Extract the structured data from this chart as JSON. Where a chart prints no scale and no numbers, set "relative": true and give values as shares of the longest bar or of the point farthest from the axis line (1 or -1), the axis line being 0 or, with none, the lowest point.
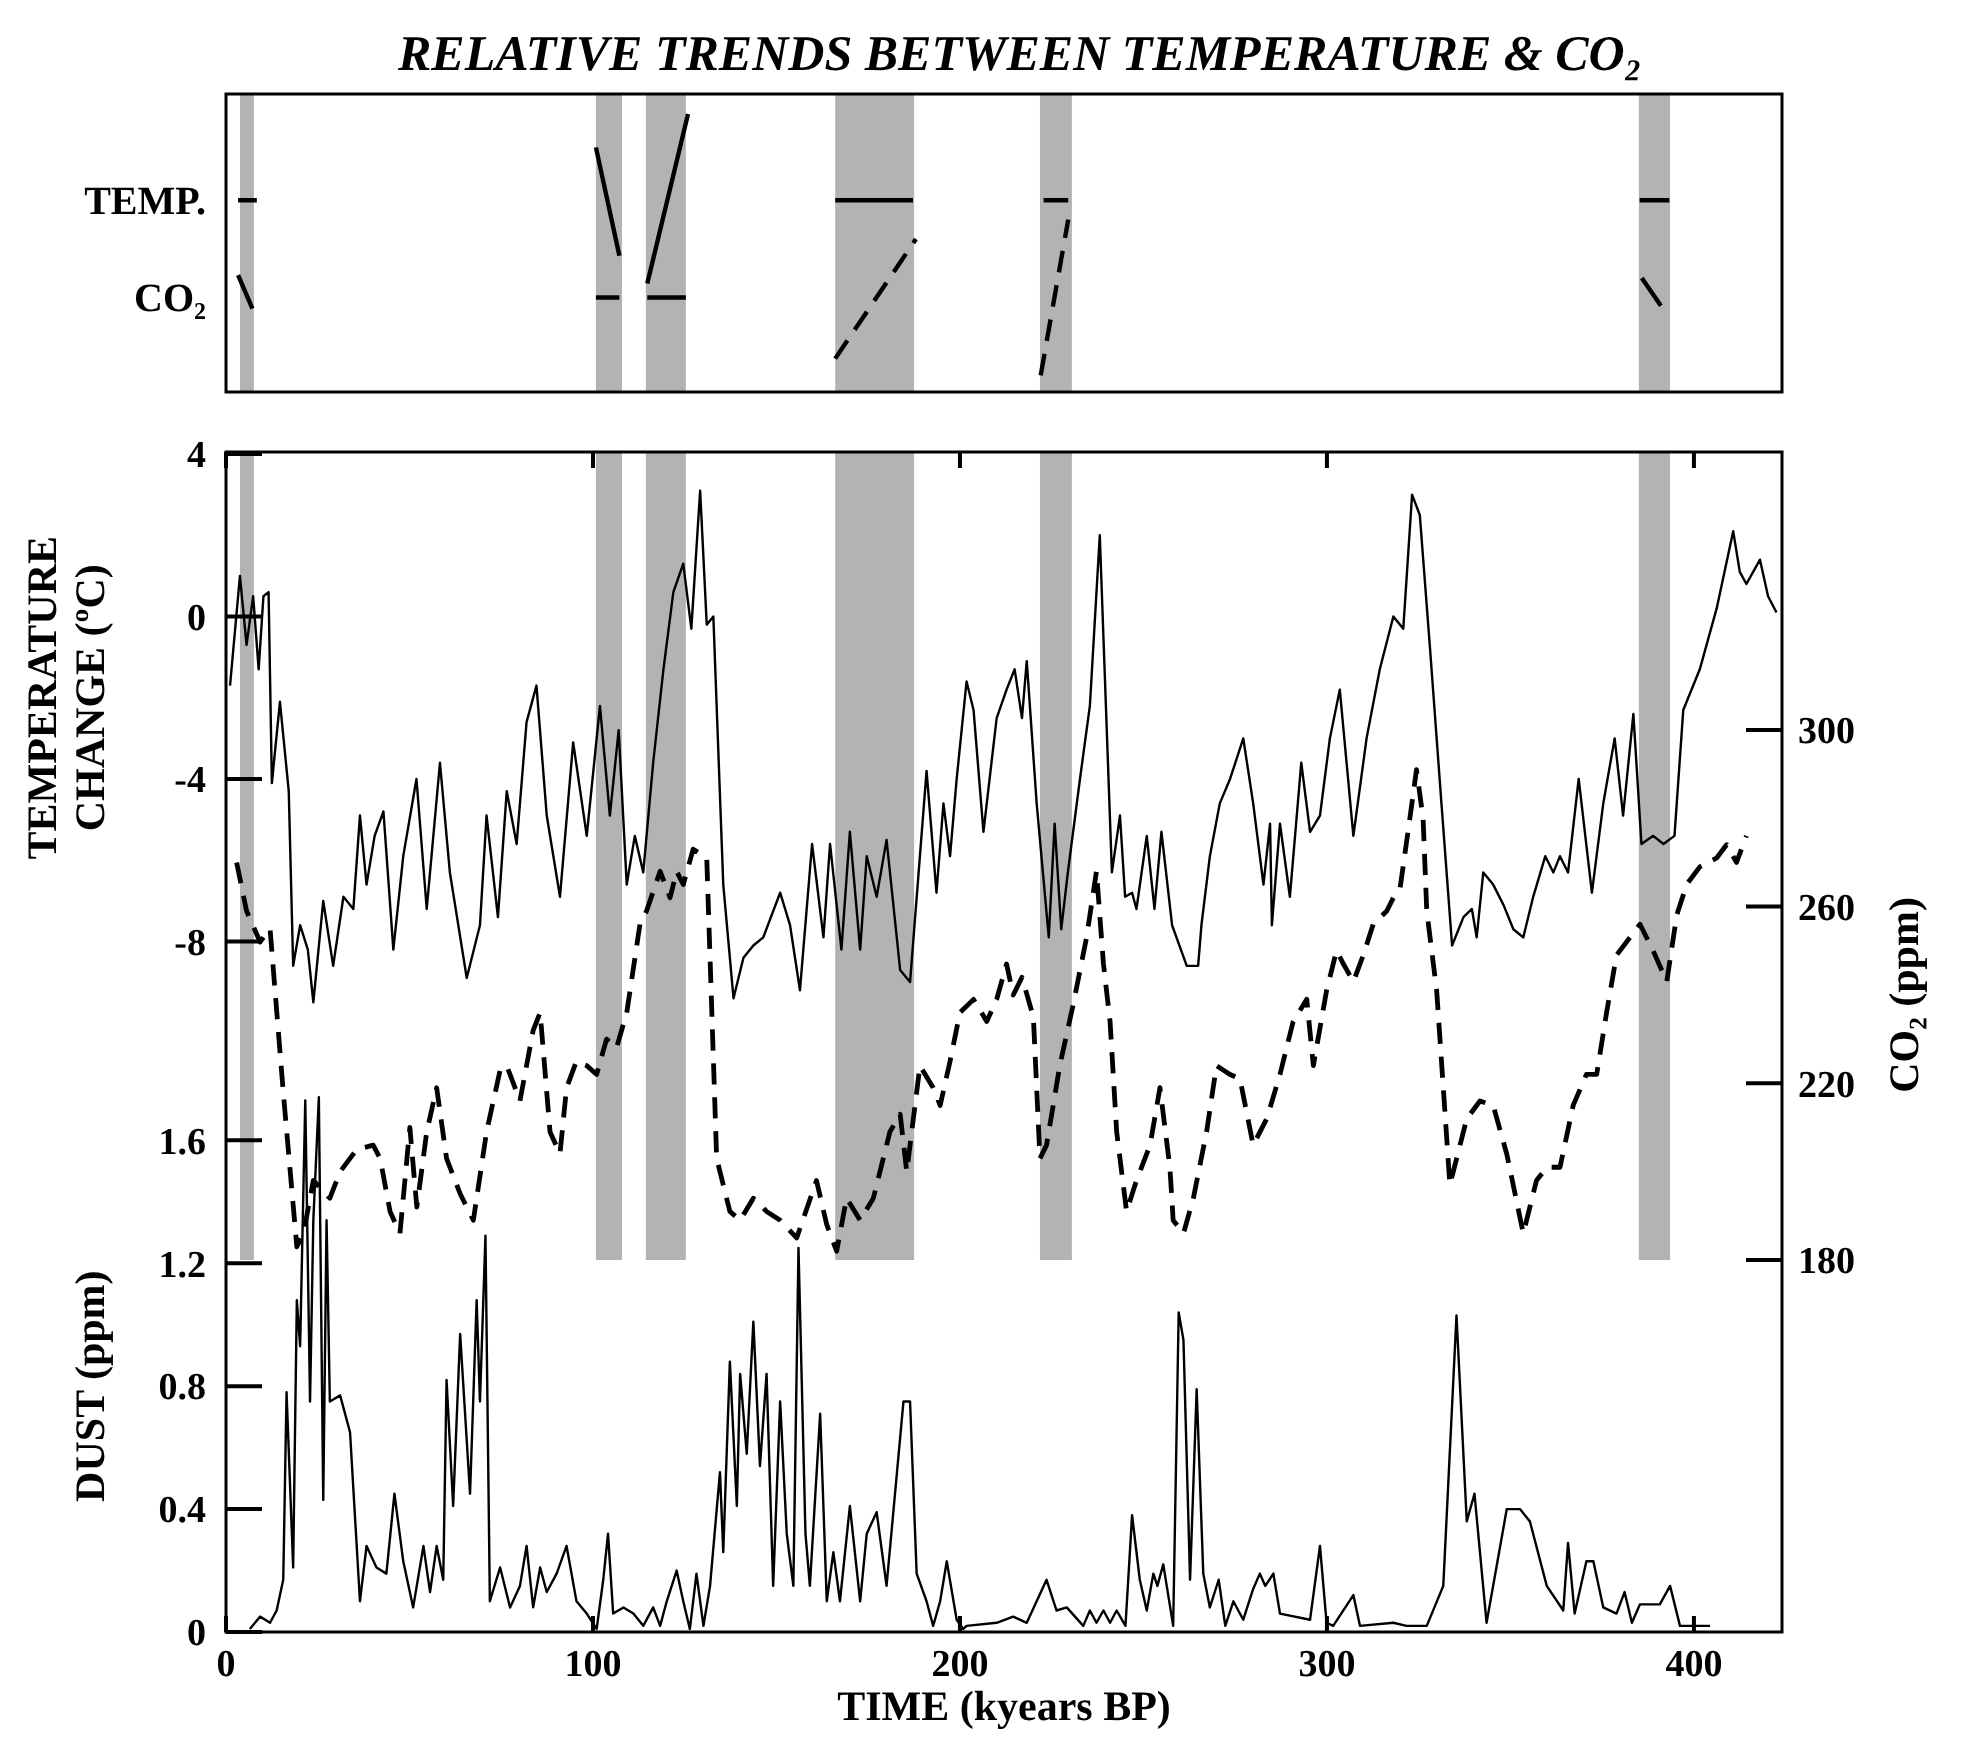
{
  "chart_data": [
    {
      "type": "line",
      "title": "RELATIVE TRENDS BETWEEN TEMPERATURE & CO₂",
      "xlim": [
        0,
        424
      ],
      "relative": true,
      "bands": [
        {
          "axis": "x",
          "from": 3.8,
          "to": 7.6,
          "color": "#b3b3b3"
        },
        {
          "axis": "x",
          "from": 100.8,
          "to": 107.9,
          "color": "#b3b3b3"
        },
        {
          "axis": "x",
          "from": 114.4,
          "to": 125.3,
          "color": "#b3b3b3"
        },
        {
          "axis": "x",
          "from": 166,
          "to": 187.5,
          "color": "#b3b3b3"
        },
        {
          "axis": "x",
          "from": 221.8,
          "to": 230.5,
          "color": "#b3b3b3"
        },
        {
          "axis": "x",
          "from": 385,
          "to": 393.5,
          "color": "#b3b3b3"
        }
      ],
      "series": [
        {
          "name": "TEMP.",
          "color": "#000000",
          "line_style": "solid",
          "x": [
            3.3,
            8.4,
            50,
            100.8,
            107.2,
            110,
            114.8,
            125.9,
            140,
            166,
            187.2,
            200,
            222.8,
            229.5,
            300,
            385.2,
            393.3
          ],
          "values": [
            0.69,
            0.69,
            null,
            0.88,
            0.49,
            null,
            0.39,
            1,
            null,
            0.69,
            0.69,
            null,
            0.69,
            0.69,
            null,
            0.69,
            0.69
          ]
        },
        {
          "name": "CO₂",
          "color": "#000000",
          "line_style": "solid",
          "x": [
            3.3,
            7.2,
            50,
            100.8,
            107.2,
            110,
            114.8,
            125.3,
            300,
            385.8,
            391
          ],
          "values": [
            0.42,
            0.3,
            null,
            0.34,
            0.34,
            null,
            0.34,
            0.34,
            null,
            0.41,
            0.31
          ]
        },
        {
          "color": "#000000",
          "line_style": "dashed",
          "x": [
            166,
            188,
            200,
            222,
            229.5
          ],
          "values": [
            0.12,
            0.55,
            null,
            0.06,
            0.62
          ]
        }
      ]
    },
    {
      "type": "line",
      "xlabel": "TIME (kyears BP)",
      "ylabel": "TEMPERATURE CHANGE (ºC)",
      "y2label": "CO₂ (ppm)",
      "y3label": "DUST (ppm)",
      "xlim": [
        0,
        424
      ],
      "xticks": [
        0,
        100,
        200,
        300,
        400
      ],
      "ylim": [
        -25,
        4.05
      ],
      "yticks": [
        4,
        0,
        -4,
        -8
      ],
      "y2lim": [
        95.8,
        362.9
      ],
      "y2ticks": [
        180,
        220,
        260,
        300
      ],
      "y3lim": [
        0,
        3.84
      ],
      "y3ticks": [
        0,
        0.4,
        0.8,
        1.2,
        1.6
      ],
      "bands": [
        {
          "axis": "x",
          "from": 3.8,
          "to": 7.6,
          "color": "#b3b3b3"
        },
        {
          "axis": "x",
          "from": 100.8,
          "to": 107.9,
          "color": "#b3b3b3"
        },
        {
          "axis": "x",
          "from": 114.4,
          "to": 125.3,
          "color": "#b3b3b3"
        },
        {
          "axis": "x",
          "from": 166,
          "to": 187.5,
          "color": "#b3b3b3"
        },
        {
          "axis": "x",
          "from": 221.8,
          "to": 230.5,
          "color": "#b3b3b3"
        },
        {
          "axis": "x",
          "from": 385,
          "to": 393.5,
          "color": "#b3b3b3"
        }
      ],
      "series": [
        {
          "color": "#000000",
          "line_style": "solid",
          "axis": "y",
          "x": [
            1.1,
            3.8,
            5.6,
            7.4,
            8.9,
            10.2,
            11.6,
            12.5,
            14.7,
            17.1,
            18.3,
            20.2,
            22.3,
            23.8,
            26.5,
            29.2,
            32.0,
            34.7,
            36.5,
            38.3,
            40.5,
            42.9,
            45.6,
            48.3,
            51.9,
            54.7,
            58.3,
            61.0,
            65.6,
            69.2,
            71.0,
            74.1,
            76.5,
            79.2,
            81.9,
            84.6,
            87.4,
            91.0,
            94.6,
            98.3,
            101.9,
            104.6,
            107.0,
            109.2,
            111.4,
            113.7,
            116.4,
            119.2,
            121.9,
            124.6,
            126.8,
            129.2,
            131.0,
            132.8,
            135.5,
            138.3,
            141.0,
            143.7,
            146.4,
            151.0,
            153.7,
            156.4,
            159.7,
            162.8,
            164.6,
            167.7,
            170.0,
            172.8,
            174.6,
            177.3,
            180.0,
            183.7,
            186.4,
            190.9,
            193.6,
            195.5,
            197.3,
            199.1,
            201.8,
            203.7,
            206.4,
            210.0,
            212.7,
            214.9,
            216.9,
            218.2,
            220.9,
            224.2,
            225.8,
            227.6,
            229.4,
            232.7,
            235.4,
            238.1,
            241.4,
            243.6,
            245.0,
            246.9,
            248.1,
            250.9,
            253.0,
            254.9,
            257.8,
            261.8,
            264.9,
            265.8,
            268.1,
            270.8,
            273.6,
            277.2,
            279.9,
            282.7,
            284.5,
            285.0,
            287.2,
            289.9,
            293.0,
            295.4,
            298.1,
            300.8,
            303.5,
            307.2,
            310.8,
            314.4,
            318.1,
            320.8,
            323.2,
            325.3,
            328.1,
            331.2,
            334.1,
            337.2,
            339.5,
            340.8,
            342.6,
            345.3,
            348.1,
            350.8,
            353.5,
            356.2,
            359.5,
            361.7,
            363.5,
            365.7,
            368.6,
            372.2,
            375.3,
            378.4,
            380.7,
            383.5,
            385.7,
            388.9,
            391.7,
            394.7,
            397.1,
            401.6,
            406.2,
            410.7,
            412.5,
            414.3,
            418.0,
            420.2,
            422.5
          ],
          "values": [
            -1.7,
            1.0,
            -0.7,
            0.5,
            -1.3,
            0.5,
            0.6,
            -4.1,
            -2.1,
            -4.3,
            -8.6,
            -7.6,
            -8.2,
            -9.5,
            -7.0,
            -8.6,
            -6.9,
            -7.2,
            -4.9,
            -6.6,
            -5.4,
            -4.8,
            -8.2,
            -5.9,
            -4.0,
            -7.2,
            -3.6,
            -6.3,
            -8.9,
            -7.6,
            -4.9,
            -7.4,
            -4.3,
            -5.6,
            -2.6,
            -1.7,
            -4.9,
            -6.9,
            -3.1,
            -5.4,
            -2.2,
            -4.9,
            -2.8,
            -6.6,
            -5.4,
            -6.3,
            -3.6,
            -1.3,
            0.6,
            1.3,
            -0.3,
            3.1,
            -0.2,
            0.0,
            -6.6,
            -9.4,
            -8.4,
            -8.1,
            -7.9,
            -6.8,
            -7.6,
            -9.2,
            -5.6,
            -7.9,
            -5.6,
            -8.2,
            -5.3,
            -8.2,
            -5.9,
            -6.9,
            -5.5,
            -8.7,
            -9.0,
            -3.8,
            -6.8,
            -4.6,
            -5.9,
            -4.0,
            -1.6,
            -2.3,
            -5.3,
            -2.5,
            -1.8,
            -1.3,
            -2.5,
            -1.1,
            -4.6,
            -7.9,
            -5.1,
            -7.7,
            -6.3,
            -4.0,
            -2.2,
            2.0,
            -6.3,
            -4.9,
            -6.9,
            -6.8,
            -7.2,
            -5.4,
            -7.2,
            -5.3,
            -7.6,
            -8.6,
            -8.6,
            -7.6,
            -5.9,
            -4.6,
            -4.0,
            -3.0,
            -4.6,
            -6.6,
            -5.1,
            -7.6,
            -5.1,
            -6.9,
            -3.6,
            -5.3,
            -4.9,
            -3.0,
            -1.8,
            -5.4,
            -3.0,
            -1.3,
            0.0,
            -0.3,
            3.0,
            2.5,
            -0.8,
            -4.6,
            -8.1,
            -7.4,
            -7.2,
            -7.9,
            -6.3,
            -6.6,
            -7.1,
            -7.7,
            -7.9,
            -6.9,
            -5.9,
            -6.3,
            -5.9,
            -6.3,
            -4.0,
            -6.8,
            -4.6,
            -3.0,
            -4.9,
            -2.4,
            -5.6,
            -5.4,
            -5.6,
            -5.4,
            -2.3,
            -1.3,
            0.2,
            2.1,
            1.1,
            0.8,
            1.4,
            0.5,
            0.1
          ]
        },
        {
          "color": "#000000",
          "line_style": "dashed",
          "axis": "y2",
          "x": [
            2.9,
            5.6,
            9.3,
            12.0,
            15.6,
            19.3,
            21.1,
            23.8,
            28.3,
            31.1,
            35.6,
            40.1,
            42.0,
            44.7,
            47.4,
            50.1,
            52.0,
            54.7,
            57.4,
            60.1,
            63.8,
            67.4,
            71.0,
            74.7,
            76.5,
            80.1,
            83.7,
            85.6,
            88.3,
            91.0,
            92.8,
            95.5,
            98.3,
            101.0,
            103.7,
            106.4,
            109.2,
            112.8,
            114.6,
            118.3,
            121.0,
            122.8,
            124.6,
            127.3,
            131.0,
            133.7,
            137.3,
            140.1,
            143.7,
            147.3,
            151.0,
            155.5,
            160.9,
            163.7,
            166.4,
            169.1,
            172.8,
            176.4,
            180.9,
            183.7,
            185.5,
            189.1,
            192.7,
            194.6,
            197.3,
            200.0,
            203.7,
            207.3,
            210.0,
            212.7,
            214.5,
            216.9,
            220.0,
            221.8,
            223.6,
            227.2,
            230.9,
            234.5,
            237.2,
            239.1,
            240.9,
            242.7,
            245.4,
            248.1,
            251.8,
            254.5,
            257.2,
            258.1,
            260.9,
            263.6,
            267.2,
            269.9,
            273.6,
            276.3,
            279.9,
            283.6,
            287.2,
            290.8,
            294.5,
            296.3,
            299.9,
            302.6,
            304.5,
            307.2,
            309.9,
            312.6,
            316.3,
            318.1,
            319.9,
            322.6,
            324.4,
            326.2,
            327.2,
            329.9,
            333.5,
            338.1,
            341.7,
            345.3,
            349.0,
            353.5,
            357.1,
            359.9,
            363.5,
            367.1,
            370.7,
            373.5,
            376.2,
            378.9,
            385.3,
            388.9,
            392.6,
            395.3,
            398.0,
            401.6,
            406.2,
            408.9,
            411.6,
            414.3
          ],
          "values": [
            270,
            259,
            252,
            255,
            218,
            183,
            186,
            198,
            194,
            200,
            205,
            206,
            203,
            191,
            186,
            210,
            192,
            209,
            219,
            203,
            195,
            189,
            209,
            223,
            224,
            216,
            232,
            236,
            209,
            204,
            219,
            225,
            224,
            222,
            230,
            228,
            236,
            256,
            259,
            268,
            262,
            268,
            265,
            273,
            271,
            203,
            191,
            189,
            194,
            191,
            189,
            185,
            198,
            188,
            182,
            194,
            189,
            194,
            209,
            213,
            200,
            224,
            219,
            215,
            225,
            236,
            239,
            234,
            239,
            247,
            240,
            244,
            235,
            203,
            206,
            224,
            238,
            253,
            268,
            247,
            234,
            209,
            191,
            198,
            206,
            219,
            201,
            189,
            186,
            194,
            209,
            224,
            222,
            221,
            206,
            212,
            222,
            234,
            239,
            224,
            241,
            250,
            247,
            243,
            249,
            256,
            259,
            262,
            264,
            280,
            291,
            280,
            259,
            241,
            197,
            212,
            216,
            215,
            204,
            186,
            198,
            201,
            201,
            215,
            222,
            222,
            236,
            249,
            256,
            250,
            243,
            258,
            265,
            269,
            271,
            274,
            270,
            276
          ]
        },
        {
          "color": "#000000",
          "line_style": "solid",
          "axis": "y3",
          "x": [
            6.5,
            9.3,
            12.0,
            13.8,
            15.6,
            16.5,
            18.3,
            19.3,
            20.2,
            21.6,
            22.9,
            23.8,
            25.3,
            26.5,
            27.4,
            28.3,
            31.1,
            33.8,
            36.5,
            38.3,
            41.0,
            43.7,
            45.9,
            48.3,
            51.0,
            53.8,
            55.6,
            57.4,
            59.2,
            60.1,
            61.9,
            63.8,
            66.5,
            68.3,
            69.2,
            70.7,
            71.9,
            74.7,
            77.4,
            80.1,
            81.9,
            83.7,
            85.6,
            87.4,
            90.1,
            92.8,
            95.5,
            98.3,
            101.0,
            102.8,
            104.1,
            105.5,
            108.3,
            111.0,
            113.7,
            116.4,
            118.3,
            120.1,
            122.8,
            124.6,
            126.4,
            128.2,
            130.1,
            131.9,
            134.6,
            135.5,
            137.3,
            139.2,
            140.1,
            141.9,
            143.7,
            145.5,
            147.3,
            149.1,
            151.0,
            152.8,
            154.6,
            156.0,
            157.9,
            159.1,
            161.9,
            163.7,
            165.5,
            167.3,
            170.0,
            172.8,
            174.6,
            177.3,
            180.0,
            184.6,
            186.4,
            188.2,
            190.9,
            192.7,
            194.6,
            196.4,
            199.1,
            200.9,
            201.8,
            210.0,
            214.5,
            218.2,
            223.6,
            226.3,
            229.1,
            233.6,
            235.4,
            237.2,
            239.1,
            240.9,
            242.7,
            245.1,
            246.9,
            249.0,
            250.9,
            252.7,
            253.8,
            255.4,
            258.1,
            259.6,
            260.9,
            262.7,
            264.5,
            266.3,
            268.1,
            270.5,
            272.3,
            274.5,
            277.2,
            279.9,
            281.7,
            283.2,
            285.4,
            287.2,
            295.4,
            298.1,
            299.9,
            301.7,
            307.2,
            309.0,
            318.1,
            321.7,
            327.2,
            331.7,
            335.3,
            338.1,
            340.2,
            343.5,
            349.0,
            352.6,
            355.3,
            359.9,
            364.4,
            365.7,
            367.5,
            370.7,
            372.6,
            375.3,
            378.9,
            381.1,
            383.1,
            385.3,
            390.7,
            393.5,
            396.2,
            399.8,
            404.4
          ],
          "values": [
            0.01,
            0.05,
            0.03,
            0.07,
            0.17,
            0.78,
            0.21,
            1.08,
            0.93,
            1.73,
            0.75,
            1.34,
            1.74,
            0.43,
            1.34,
            0.75,
            0.77,
            0.65,
            0.1,
            0.28,
            0.21,
            0.19,
            0.45,
            0.23,
            0.08,
            0.28,
            0.13,
            0.28,
            0.17,
            0.82,
            0.41,
            0.97,
            0.45,
            1.08,
            0.75,
            1.29,
            0.1,
            0.21,
            0.08,
            0.15,
            0.28,
            0.08,
            0.21,
            0.13,
            0.19,
            0.28,
            0.1,
            0.06,
            0.01,
            0.17,
            0.32,
            0.06,
            0.08,
            0.06,
            0.02,
            0.08,
            0.02,
            0.1,
            0.2,
            0.1,
            0.01,
            0.19,
            0.02,
            0.15,
            0.52,
            0.26,
            0.88,
            0.41,
            0.84,
            0.58,
            1.01,
            0.54,
            0.84,
            0.15,
            0.75,
            0.32,
            0.15,
            1.25,
            0.32,
            0.15,
            0.71,
            0.1,
            0.26,
            0.1,
            0.41,
            0.1,
            0.32,
            0.39,
            0.15,
            0.75,
            0.75,
            0.19,
            0.1,
            0.02,
            0.1,
            0.23,
            0.04,
            0.01,
            0.02,
            0.03,
            0.05,
            0.03,
            0.17,
            0.07,
            0.08,
            0.02,
            0.07,
            0.03,
            0.07,
            0.03,
            0.07,
            0.02,
            0.38,
            0.17,
            0.07,
            0.19,
            0.15,
            0.22,
            0.02,
            1.04,
            0.95,
            0.17,
            0.79,
            0.19,
            0.08,
            0.17,
            0.02,
            0.1,
            0.04,
            0.14,
            0.19,
            0.15,
            0.19,
            0.06,
            0.04,
            0.28,
            0.03,
            0.02,
            0.12,
            0.02,
            0.03,
            0.02,
            0.02,
            0.15,
            1.03,
            0.36,
            0.45,
            0.03,
            0.4,
            0.4,
            0.36,
            0.15,
            0.07,
            0.29,
            0.06,
            0.23,
            0.23,
            0.08,
            0.06,
            0.13,
            0.03,
            0.09,
            0.09,
            0.15,
            0.02,
            0.02,
            0.02
          ]
        }
      ]
    }
  ]
}
